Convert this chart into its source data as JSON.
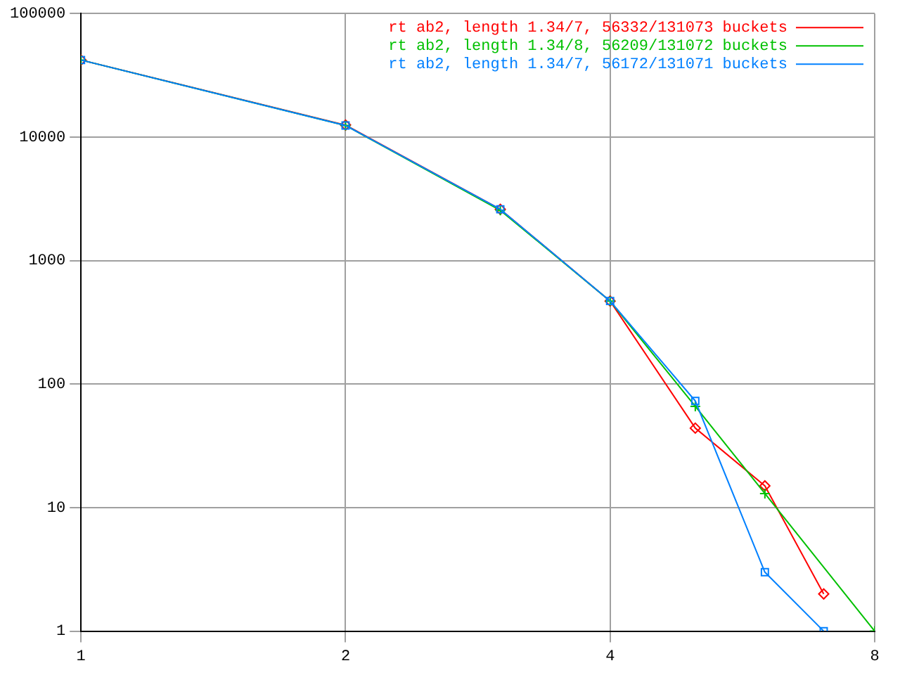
{
  "chart_data": {
    "type": "line",
    "log": "xy",
    "grid": true,
    "legend": "top right",
    "xlim": [
      1,
      8
    ],
    "xticks": [
      1,
      2,
      4,
      8
    ],
    "ylim": [
      1,
      100000
    ],
    "yticks": [
      1,
      10,
      100,
      1000,
      10000,
      100000
    ],
    "series": [
      {
        "name": "rt ab2, length 1.34/7, 56332/131073 buckets",
        "color": "#ff0000",
        "marker": "diamond",
        "x": [
          1,
          2,
          3,
          4,
          5,
          6,
          7
        ],
        "values": [
          42000,
          12500,
          2600,
          470,
          44,
          15,
          2
        ]
      },
      {
        "name": "rt ab2, length 1.34/8, 56209/131072 buckets",
        "color": "#00c000",
        "marker": "cross",
        "x": [
          1,
          2,
          3,
          4,
          5,
          6,
          8
        ],
        "values": [
          42000,
          12400,
          2550,
          470,
          66,
          13,
          1
        ]
      },
      {
        "name": "rt ab2, length 1.34/7, 56172/131071 buckets",
        "color": "#0080ff",
        "marker": "square",
        "x": [
          1,
          2,
          3,
          4,
          5,
          6,
          7
        ],
        "values": [
          42000,
          12400,
          2600,
          470,
          73,
          3,
          1
        ]
      }
    ]
  }
}
